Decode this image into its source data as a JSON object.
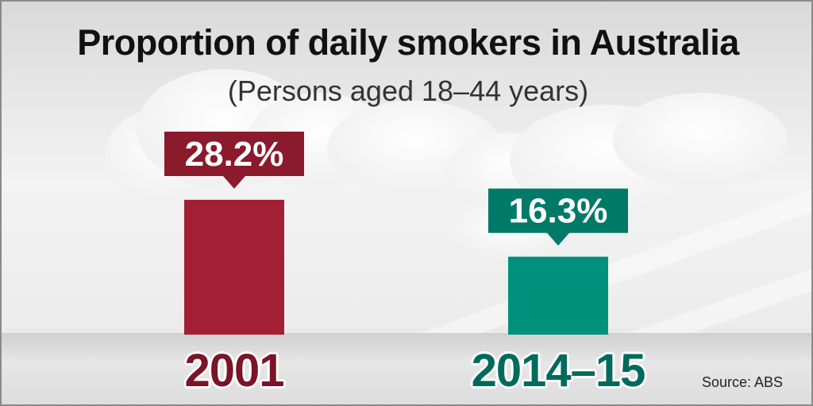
{
  "title": "Proportion of daily smokers in Australia",
  "subtitle": "(Persons aged 18–44 years)",
  "source": "Source: ABS",
  "chart_data": {
    "type": "bar",
    "categories": [
      "2001",
      "2014–15"
    ],
    "values": [
      28.2,
      16.3
    ],
    "value_labels": [
      "28.2%",
      "16.3%"
    ],
    "colors": [
      "#a31f34",
      "#00917c"
    ],
    "label_colors": [
      "#8a1a2c",
      "#007a68"
    ],
    "year_colors": [
      "#7a1426",
      "#006b5c"
    ],
    "ylim": [
      0,
      30
    ]
  }
}
